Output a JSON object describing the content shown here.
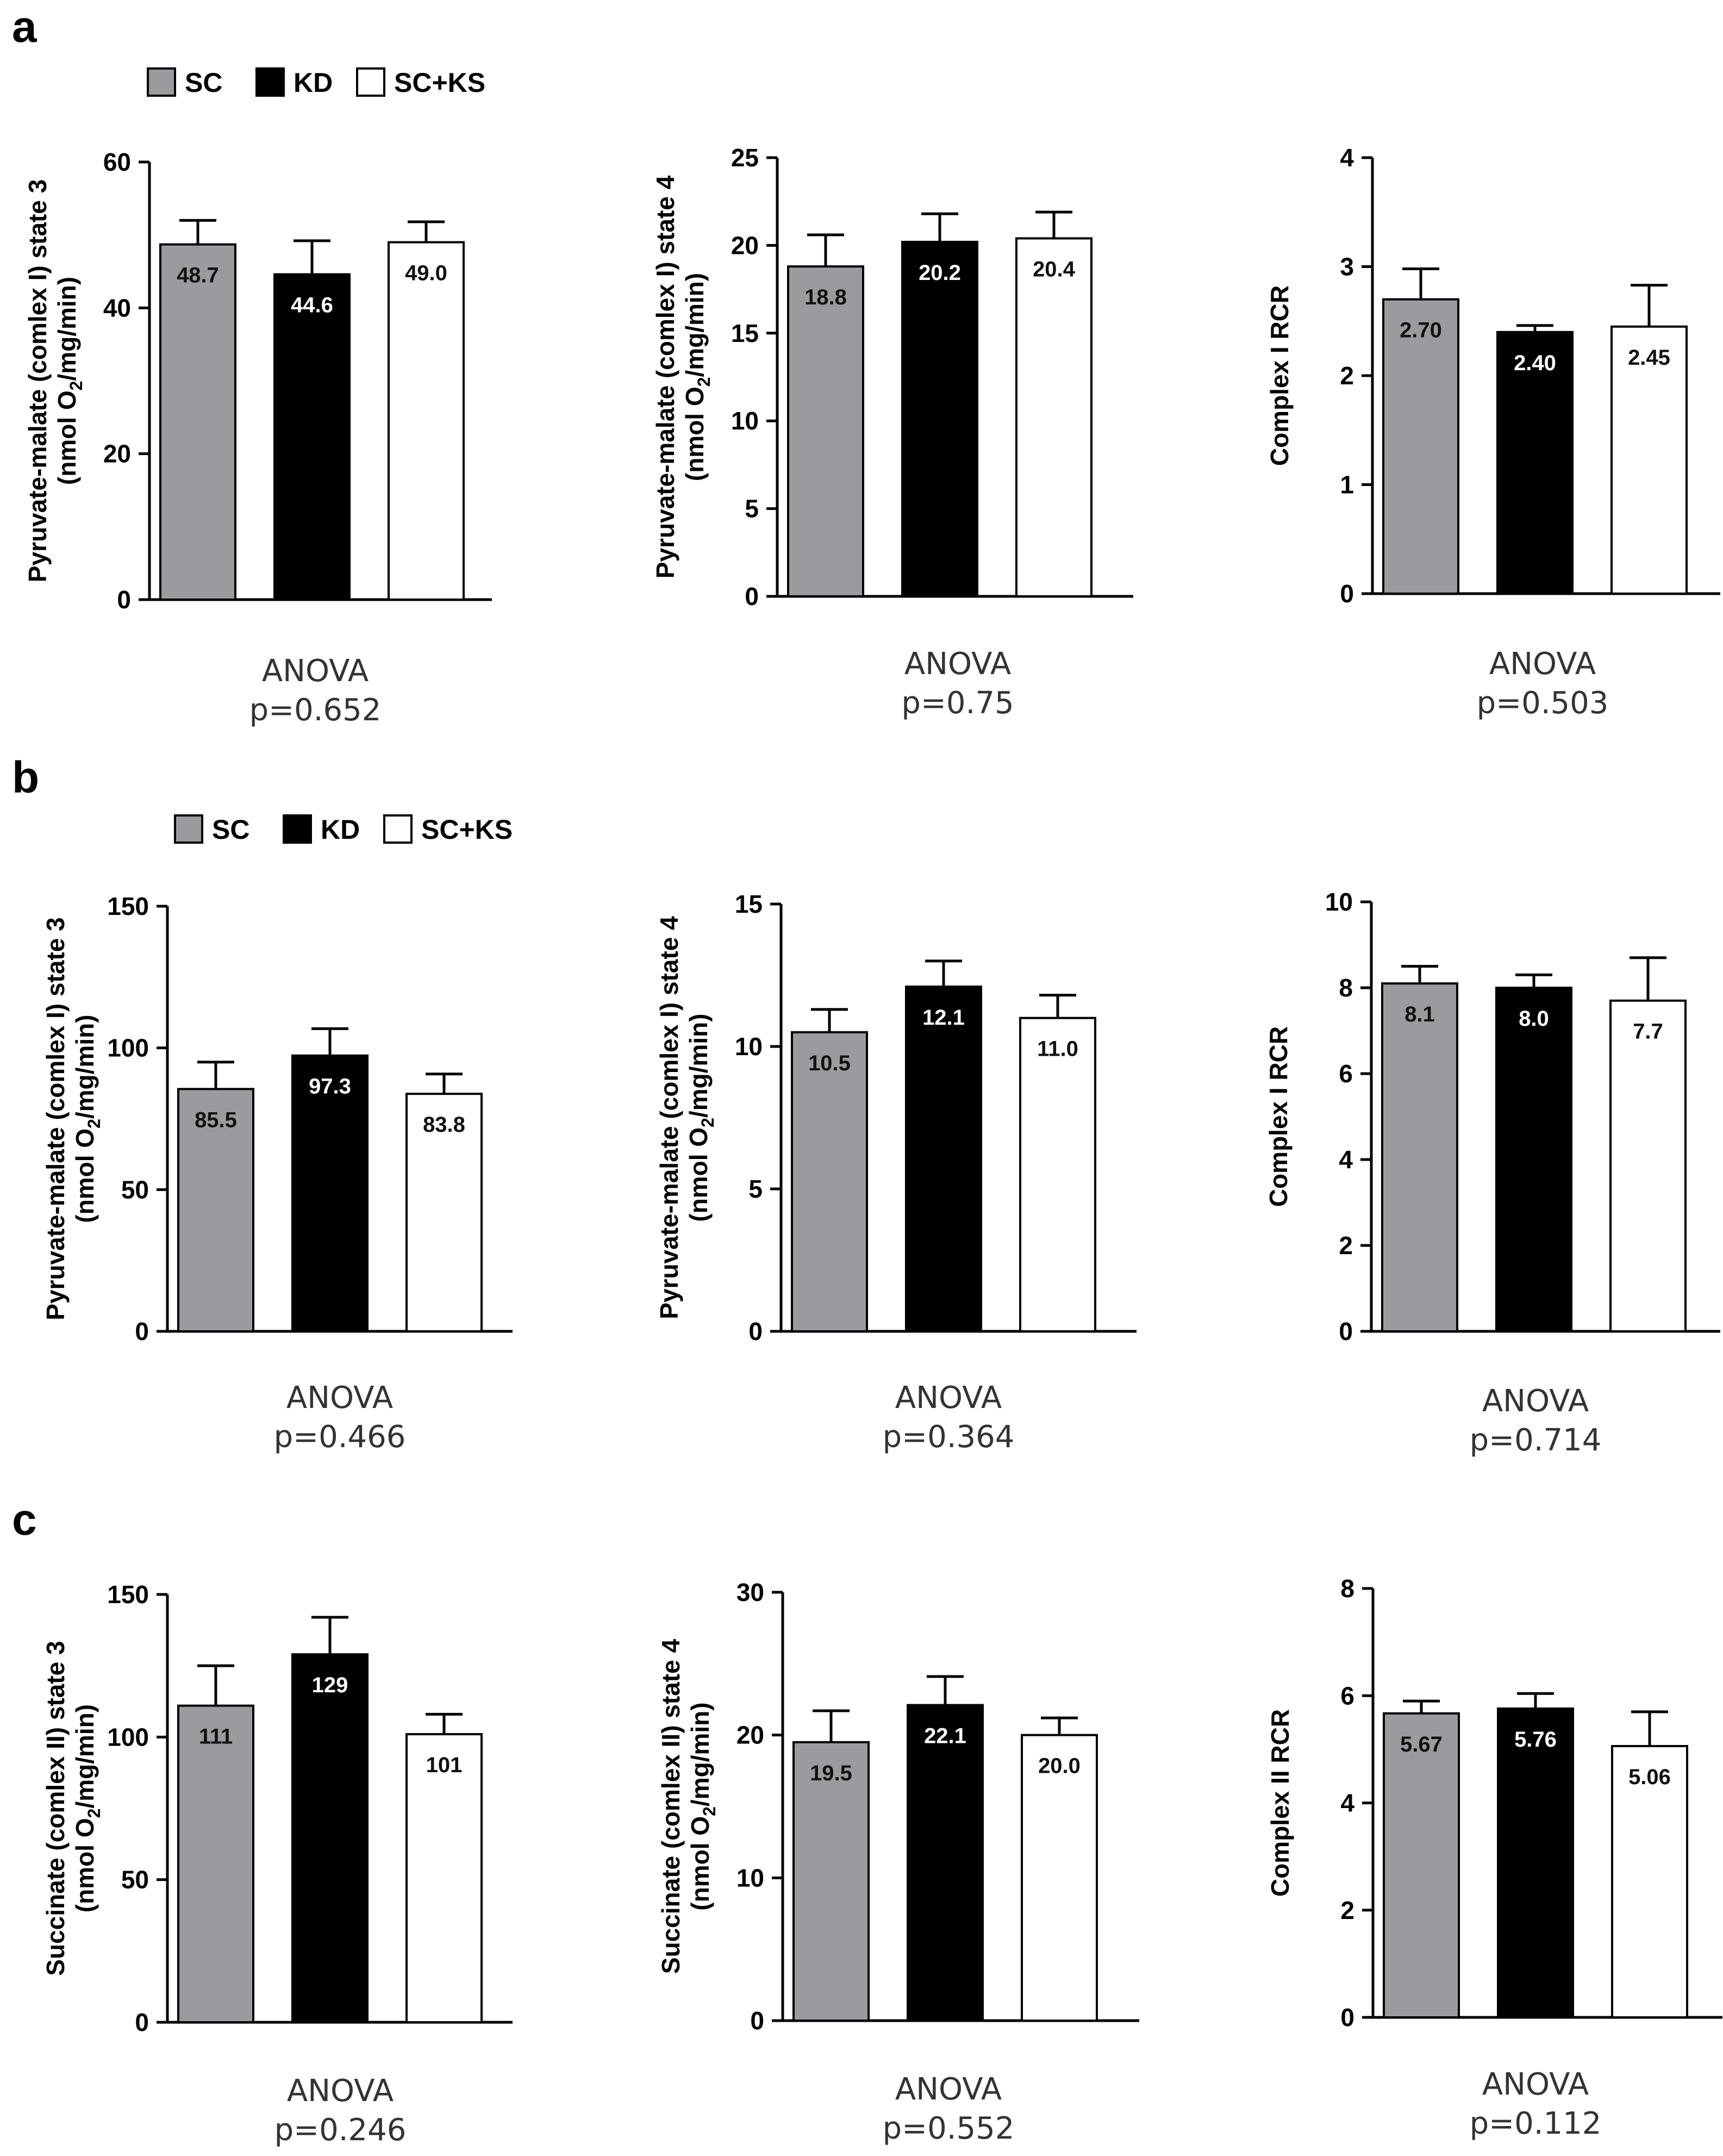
{
  "colors": {
    "SC": "#9b9b9f",
    "KD": "#000000",
    "SC+KS": "#ffffff"
  },
  "panels": [
    {
      "letter": "a",
      "legend": [
        "SC",
        "KD",
        "SC+KS"
      ]
    },
    {
      "letter": "b",
      "legend": [
        "SC",
        "KD",
        "SC+KS"
      ]
    },
    {
      "letter": "c",
      "legend": []
    }
  ],
  "chart_data": [
    {
      "id": "a1",
      "type": "bar",
      "ylabel": [
        "Pyruvate-malate (comlex I) state 3",
        "(nmol O₂/mg/min)"
      ],
      "ylim": [
        0,
        60
      ],
      "yticks": [
        "0",
        "20",
        "40",
        "60"
      ],
      "categories": [
        "SC",
        "KD",
        "SC+KS"
      ],
      "values": [
        48.7,
        44.6,
        49.0
      ],
      "errors": [
        3.3,
        4.6,
        2.8
      ],
      "value_labels": [
        "48.7",
        "44.6",
        "49.0"
      ],
      "stat": [
        "ANOVA",
        "p=0.652"
      ]
    },
    {
      "id": "a2",
      "type": "bar",
      "ylabel": [
        "Pyruvate-malate (comlex I) state 4",
        "(nmol O₂/mg/min)"
      ],
      "ylim": [
        0,
        25
      ],
      "yticks": [
        "0",
        "5",
        "10",
        "15",
        "20",
        "25"
      ],
      "categories": [
        "SC",
        "KD",
        "SC+KS"
      ],
      "values": [
        18.8,
        20.2,
        20.4
      ],
      "errors": [
        1.8,
        1.6,
        1.5
      ],
      "value_labels": [
        "18.8",
        "20.2",
        "20.4"
      ],
      "stat": [
        "ANOVA",
        "p=0.75"
      ]
    },
    {
      "id": "a3",
      "type": "bar",
      "ylabel": [
        "Complex I RCR"
      ],
      "ylim": [
        0,
        4
      ],
      "yticks": [
        "0",
        "1",
        "2",
        "3",
        "4"
      ],
      "categories": [
        "SC",
        "KD",
        "SC+KS"
      ],
      "values": [
        2.7,
        2.4,
        2.45
      ],
      "errors": [
        0.28,
        0.06,
        0.38
      ],
      "value_labels": [
        "2.70",
        "2.40",
        "2.45"
      ],
      "stat": [
        "ANOVA",
        "p=0.503"
      ]
    },
    {
      "id": "b1",
      "type": "bar",
      "ylabel": [
        "Pyruvate-malate (comlex I) state 3",
        "(nmol O₂/mg/min)"
      ],
      "ylim": [
        0,
        150
      ],
      "yticks": [
        "0",
        "50",
        "100",
        "150"
      ],
      "categories": [
        "SC",
        "KD",
        "SC+KS"
      ],
      "values": [
        85.5,
        97.3,
        83.8
      ],
      "errors": [
        9.5,
        9.5,
        7.0
      ],
      "value_labels": [
        "85.5",
        "97.3",
        "83.8"
      ],
      "stat": [
        "ANOVA",
        "p=0.466"
      ]
    },
    {
      "id": "b2",
      "type": "bar",
      "ylabel": [
        "Pyruvate-malate (comlex I) state 4",
        "(nmol O₂/mg/min)"
      ],
      "ylim": [
        0,
        15
      ],
      "yticks": [
        "0",
        "5",
        "10",
        "15"
      ],
      "categories": [
        "SC",
        "KD",
        "SC+KS"
      ],
      "values": [
        10.5,
        12.1,
        11.0
      ],
      "errors": [
        0.8,
        0.9,
        0.8
      ],
      "value_labels": [
        "10.5",
        "12.1",
        "11.0"
      ],
      "stat": [
        "ANOVA",
        "p=0.364"
      ]
    },
    {
      "id": "b3",
      "type": "bar",
      "ylabel": [
        "Complex I RCR"
      ],
      "ylim": [
        0,
        10
      ],
      "yticks": [
        "0",
        "2",
        "4",
        "6",
        "8",
        "10"
      ],
      "categories": [
        "SC",
        "KD",
        "SC+KS"
      ],
      "values": [
        8.1,
        8.0,
        7.7
      ],
      "errors": [
        0.4,
        0.3,
        1.0
      ],
      "value_labels": [
        "8.1",
        "8.0",
        "7.7"
      ],
      "stat": [
        "ANOVA",
        "p=0.714"
      ]
    },
    {
      "id": "c1",
      "type": "bar",
      "ylabel": [
        "Succinate (comlex II) state 3",
        "(nmol O₂/mg/min)"
      ],
      "ylim": [
        0,
        150
      ],
      "yticks": [
        "0",
        "50",
        "100",
        "150"
      ],
      "categories": [
        "SC",
        "KD",
        "SC+KS"
      ],
      "values": [
        111,
        129,
        101
      ],
      "errors": [
        14,
        13,
        7
      ],
      "value_labels": [
        "111",
        "129",
        "101"
      ],
      "stat": [
        "ANOVA",
        "p=0.246"
      ]
    },
    {
      "id": "c2",
      "type": "bar",
      "ylabel": [
        "Succinate (comlex II) state 4",
        "(nmol O₂/mg/min)"
      ],
      "ylim": [
        0,
        30
      ],
      "yticks": [
        "0",
        "10",
        "20",
        "30"
      ],
      "categories": [
        "SC",
        "KD",
        "SC+KS"
      ],
      "values": [
        19.5,
        22.1,
        20.0
      ],
      "errors": [
        2.2,
        2.0,
        1.2
      ],
      "value_labels": [
        "19.5",
        "22.1",
        "20.0"
      ],
      "stat": [
        "ANOVA",
        "p=0.552"
      ]
    },
    {
      "id": "c3",
      "type": "bar",
      "ylabel": [
        "Complex II RCR"
      ],
      "ylim": [
        0,
        8
      ],
      "yticks": [
        "0",
        "2",
        "4",
        "6",
        "8"
      ],
      "categories": [
        "SC",
        "KD",
        "SC+KS"
      ],
      "values": [
        5.67,
        5.76,
        5.06
      ],
      "errors": [
        0.23,
        0.28,
        0.64
      ],
      "value_labels": [
        "5.67",
        "5.76",
        "5.06"
      ],
      "stat": [
        "ANOVA",
        "p=0.112"
      ]
    }
  ]
}
